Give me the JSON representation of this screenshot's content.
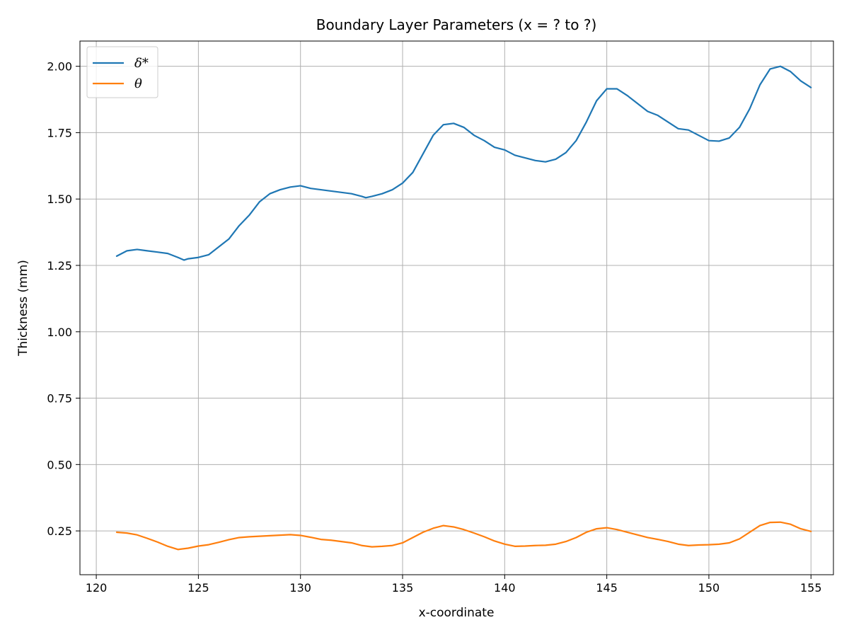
{
  "chart_data": {
    "type": "line",
    "title": "Boundary Layer Parameters (x = ? to ?)",
    "xlabel": "x-coordinate",
    "ylabel": "Thickness (mm)",
    "xlim": [
      119.2,
      156.1
    ],
    "ylim": [
      0.085,
      2.095
    ],
    "xticks": [
      120,
      125,
      130,
      135,
      140,
      145,
      150,
      155
    ],
    "yticks": [
      0.25,
      0.5,
      0.75,
      1.0,
      1.25,
      1.5,
      1.75,
      2.0
    ],
    "xtick_labels": [
      "120",
      "125",
      "130",
      "135",
      "140",
      "145",
      "150",
      "155"
    ],
    "ytick_labels": [
      "0.25",
      "0.50",
      "0.75",
      "1.00",
      "1.25",
      "1.50",
      "1.75",
      "2.00"
    ],
    "grid": true,
    "legend_position": "top-left",
    "series": [
      {
        "name": "δ*",
        "color": "#1f77b4",
        "x": [
          121.0,
          121.5,
          122.0,
          122.5,
          123.0,
          123.5,
          124.0,
          124.3,
          124.5,
          125.0,
          125.5,
          126.0,
          126.5,
          127.0,
          127.5,
          128.0,
          128.5,
          129.0,
          129.5,
          130.0,
          130.5,
          131.0,
          131.5,
          132.0,
          132.5,
          133.0,
          133.2,
          133.5,
          134.0,
          134.5,
          135.0,
          135.5,
          136.0,
          136.5,
          137.0,
          137.5,
          138.0,
          138.5,
          139.0,
          139.5,
          140.0,
          140.5,
          141.0,
          141.5,
          142.0,
          142.5,
          143.0,
          143.5,
          144.0,
          144.5,
          145.0,
          145.5,
          146.0,
          146.5,
          147.0,
          147.5,
          148.0,
          148.5,
          149.0,
          149.5,
          150.0,
          150.5,
          151.0,
          151.5,
          152.0,
          152.5,
          153.0,
          153.5,
          154.0,
          154.5,
          155.0
        ],
        "values": [
          1.285,
          1.305,
          1.31,
          1.305,
          1.3,
          1.295,
          1.28,
          1.27,
          1.275,
          1.28,
          1.29,
          1.32,
          1.35,
          1.4,
          1.44,
          1.49,
          1.52,
          1.535,
          1.545,
          1.55,
          1.54,
          1.535,
          1.53,
          1.525,
          1.52,
          1.51,
          1.505,
          1.51,
          1.52,
          1.535,
          1.56,
          1.6,
          1.67,
          1.74,
          1.78,
          1.785,
          1.77,
          1.74,
          1.72,
          1.695,
          1.685,
          1.665,
          1.655,
          1.645,
          1.64,
          1.65,
          1.675,
          1.72,
          1.79,
          1.87,
          1.915,
          1.915,
          1.89,
          1.86,
          1.83,
          1.815,
          1.79,
          1.765,
          1.76,
          1.74,
          1.72,
          1.718,
          1.73,
          1.77,
          1.84,
          1.93,
          1.99,
          2.0,
          1.98,
          1.945,
          1.92
        ]
      },
      {
        "name": "θ",
        "color": "#ff7f0e",
        "x": [
          121.0,
          121.5,
          122.0,
          122.5,
          123.0,
          123.5,
          124.0,
          124.5,
          125.0,
          125.5,
          126.0,
          126.5,
          127.0,
          127.5,
          128.0,
          128.5,
          129.0,
          129.5,
          130.0,
          130.5,
          131.0,
          131.5,
          132.0,
          132.5,
          133.0,
          133.5,
          134.0,
          134.5,
          135.0,
          135.5,
          136.0,
          136.5,
          137.0,
          137.5,
          138.0,
          138.5,
          139.0,
          139.5,
          140.0,
          140.5,
          141.0,
          141.5,
          142.0,
          142.5,
          143.0,
          143.5,
          144.0,
          144.5,
          145.0,
          145.5,
          146.0,
          146.5,
          147.0,
          147.5,
          148.0,
          148.5,
          149.0,
          149.5,
          150.0,
          150.5,
          151.0,
          151.5,
          152.0,
          152.5,
          153.0,
          153.5,
          154.0,
          154.5,
          155.0
        ],
        "values": [
          0.245,
          0.242,
          0.235,
          0.222,
          0.208,
          0.192,
          0.18,
          0.185,
          0.193,
          0.198,
          0.207,
          0.217,
          0.225,
          0.228,
          0.23,
          0.232,
          0.234,
          0.236,
          0.233,
          0.226,
          0.218,
          0.215,
          0.21,
          0.205,
          0.195,
          0.19,
          0.192,
          0.195,
          0.205,
          0.225,
          0.245,
          0.26,
          0.27,
          0.265,
          0.255,
          0.242,
          0.228,
          0.212,
          0.2,
          0.192,
          0.193,
          0.195,
          0.196,
          0.2,
          0.21,
          0.225,
          0.245,
          0.258,
          0.262,
          0.255,
          0.245,
          0.235,
          0.225,
          0.218,
          0.21,
          0.2,
          0.195,
          0.197,
          0.198,
          0.2,
          0.205,
          0.22,
          0.245,
          0.27,
          0.282,
          0.283,
          0.275,
          0.258,
          0.248
        ]
      }
    ]
  }
}
